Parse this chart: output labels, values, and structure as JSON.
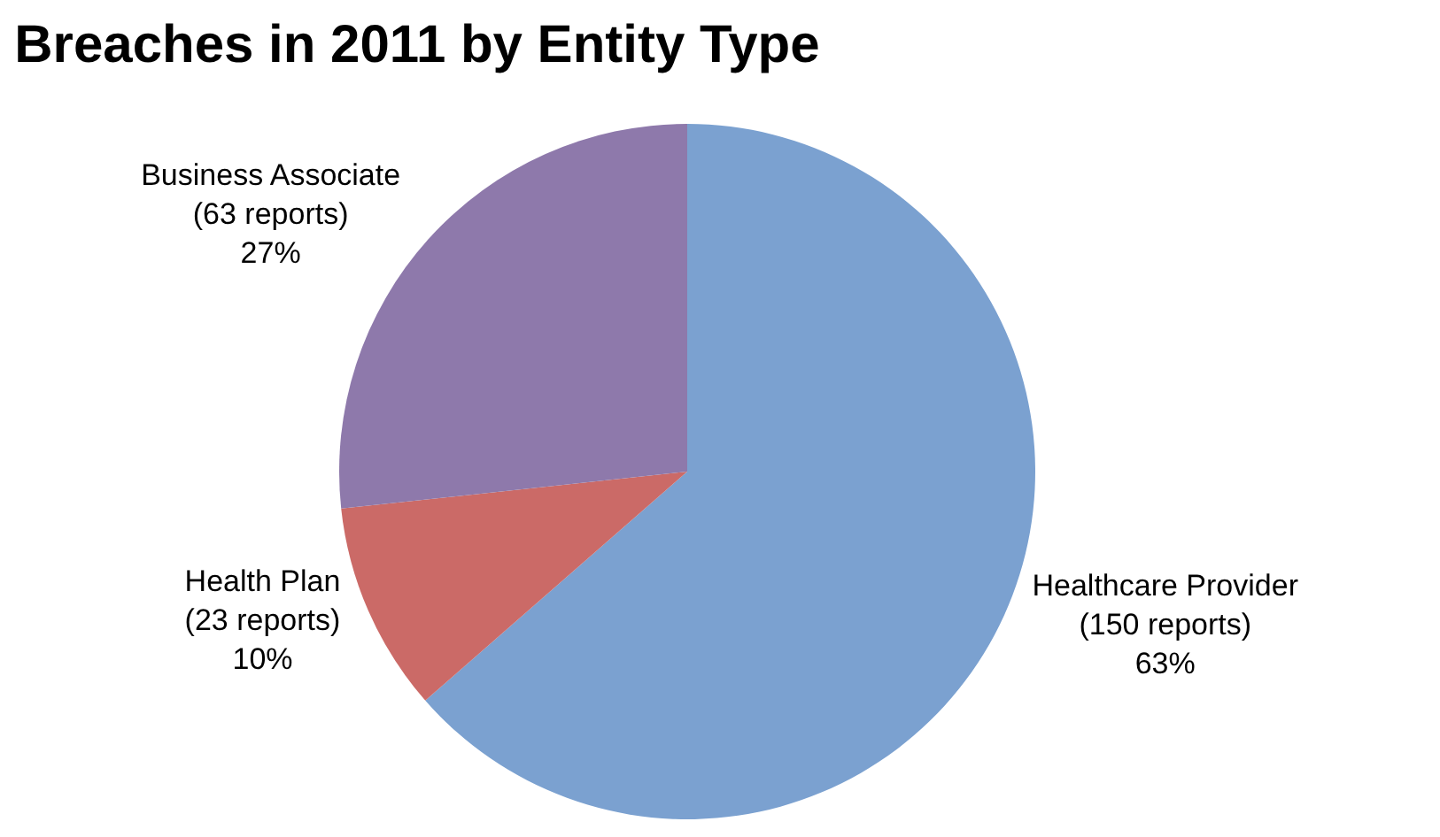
{
  "chart_data": {
    "type": "pie",
    "title": "Breaches in 2011 by Entity Type",
    "categories": [
      "Healthcare Provider",
      "Health Plan",
      "Business Associate"
    ],
    "values": [
      150,
      23,
      63
    ],
    "value_labels": [
      "(150 reports)\n63%",
      "(23 reports)\n10%",
      "(63 reports)\n27%"
    ],
    "colors": [
      "#7ba1d0",
      "#cb6a67",
      "#8e79ab"
    ],
    "legend": false
  }
}
